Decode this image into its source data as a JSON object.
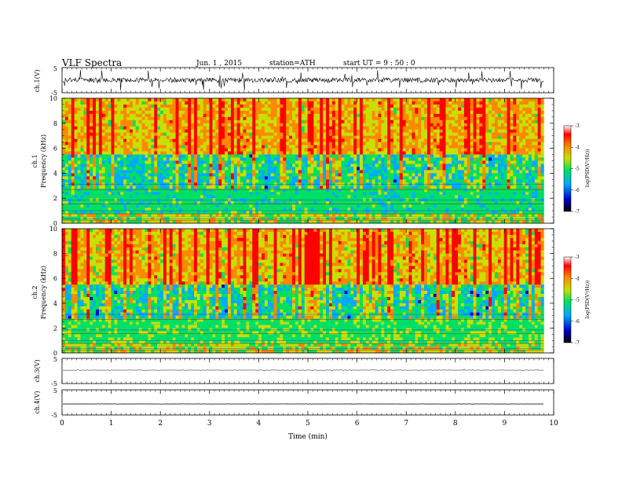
{
  "header": {
    "title": "VLF  Spectra",
    "date": "Jun. 1 , 2015",
    "station": "station=ATH",
    "start": "start  UT =   9 : 50 : 0"
  },
  "chart_data": [
    {
      "type": "line",
      "ylabel": "ch.1(V)",
      "ylim": [
        -5,
        5
      ],
      "yticks": [
        "5",
        "-5"
      ],
      "description_of_trace": "noisy waveform centred near 0 V, spikes to about ±3 V"
    },
    {
      "type": "heatmap",
      "ylabel": "ch.1 Frequency (kHz)",
      "ylim": [
        0,
        10
      ],
      "yticks": [
        "0",
        "2",
        "4",
        "6",
        "8",
        "10"
      ],
      "colorbar": {
        "label": "log(PSD(V²/Hz))",
        "range": [
          -7,
          -3
        ],
        "ticks": [
          "-3",
          "-4",
          "-5",
          "-6",
          "-7"
        ],
        "colors": [
          "#000000",
          "#0000c8",
          "#00aaff",
          "#00e060",
          "#c8e000",
          "#ff8800",
          "#ff0000",
          "#ffffff"
        ]
      }
    },
    {
      "type": "heatmap",
      "ylabel": "ch.2 Frequency (kHz)",
      "ylim": [
        0,
        10
      ],
      "yticks": [
        "0",
        "2",
        "4",
        "6",
        "8",
        "10"
      ],
      "colorbar": {
        "label": "log(PSD(V²/Hz))",
        "range": [
          -7,
          -3
        ],
        "ticks": [
          "-3",
          "-4",
          "-5",
          "-6",
          "-7"
        ]
      }
    },
    {
      "type": "line",
      "ylabel": "ch.3(V)",
      "ylim": [
        -5,
        5
      ],
      "yticks": [
        "5",
        "-5"
      ]
    },
    {
      "type": "line",
      "ylabel": "ch.4(V)",
      "ylim": [
        -5,
        5
      ],
      "yticks": [
        "5",
        "-5"
      ]
    }
  ],
  "xaxis": {
    "label": "Time  (min)",
    "range": [
      0,
      10
    ],
    "ticks": [
      "0",
      "1",
      "2",
      "3",
      "4",
      "5",
      "6",
      "7",
      "8",
      "9",
      "10"
    ],
    "data_end": 9.8
  }
}
